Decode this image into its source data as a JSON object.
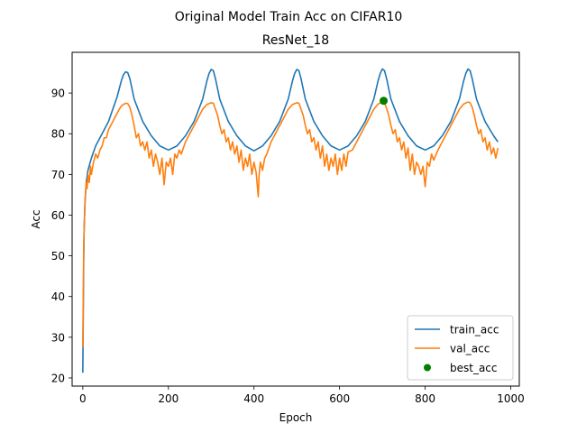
{
  "chart_data": {
    "type": "line",
    "suptitle": "Original Model Train Acc on CIFAR10",
    "title": "ResNet_18",
    "xlabel": "Epoch",
    "ylabel": "Acc",
    "xlim": [
      -25,
      1020
    ],
    "ylim": [
      18,
      100
    ],
    "xticks": [
      0,
      200,
      400,
      600,
      800,
      1000
    ],
    "yticks": [
      20,
      30,
      40,
      50,
      60,
      70,
      80,
      90
    ],
    "grid": false,
    "legend_position": "lower-right",
    "series": [
      {
        "name": "train_acc",
        "color": "#1f77b4",
        "points": [
          [
            0,
            21.3
          ],
          [
            1,
            35
          ],
          [
            2,
            48
          ],
          [
            3,
            56
          ],
          [
            5,
            63
          ],
          [
            8,
            68
          ],
          [
            12,
            71
          ],
          [
            20,
            74
          ],
          [
            30,
            77
          ],
          [
            40,
            79
          ],
          [
            50,
            81
          ],
          [
            60,
            83
          ],
          [
            70,
            86
          ],
          [
            80,
            89
          ],
          [
            90,
            93
          ],
          [
            95,
            94.5
          ],
          [
            100,
            95.2
          ],
          [
            105,
            95
          ],
          [
            110,
            93.5
          ],
          [
            120,
            88.5
          ],
          [
            140,
            83
          ],
          [
            160,
            79.5
          ],
          [
            180,
            77
          ],
          [
            200,
            76
          ],
          [
            220,
            77
          ],
          [
            240,
            79.5
          ],
          [
            260,
            83
          ],
          [
            280,
            88.5
          ],
          [
            290,
            93
          ],
          [
            295,
            94.8
          ],
          [
            300,
            95.8
          ],
          [
            305,
            95.5
          ],
          [
            310,
            93.5
          ],
          [
            320,
            88.5
          ],
          [
            340,
            83
          ],
          [
            360,
            79.5
          ],
          [
            380,
            77
          ],
          [
            400,
            75.8
          ],
          [
            420,
            77
          ],
          [
            440,
            79.5
          ],
          [
            460,
            83
          ],
          [
            480,
            88.5
          ],
          [
            490,
            93
          ],
          [
            495,
            94.8
          ],
          [
            500,
            95.8
          ],
          [
            505,
            95.5
          ],
          [
            510,
            93.5
          ],
          [
            520,
            88.5
          ],
          [
            540,
            83
          ],
          [
            560,
            79.5
          ],
          [
            580,
            77
          ],
          [
            600,
            76
          ],
          [
            620,
            77
          ],
          [
            640,
            79.5
          ],
          [
            660,
            83
          ],
          [
            680,
            88.5
          ],
          [
            690,
            93
          ],
          [
            695,
            94.8
          ],
          [
            700,
            95.9
          ],
          [
            705,
            95.5
          ],
          [
            710,
            93.5
          ],
          [
            720,
            88.5
          ],
          [
            740,
            83
          ],
          [
            760,
            79.5
          ],
          [
            780,
            77
          ],
          [
            800,
            76
          ],
          [
            820,
            77
          ],
          [
            840,
            79.5
          ],
          [
            860,
            83
          ],
          [
            880,
            88.5
          ],
          [
            890,
            93
          ],
          [
            895,
            94.8
          ],
          [
            900,
            95.9
          ],
          [
            905,
            95.5
          ],
          [
            910,
            93.5
          ],
          [
            920,
            88.5
          ],
          [
            940,
            83
          ],
          [
            960,
            79.5
          ],
          [
            970,
            78
          ]
        ]
      },
      {
        "name": "val_acc",
        "color": "#ff7f0e",
        "points": [
          [
            0,
            27.5
          ],
          [
            2,
            52
          ],
          [
            4,
            60
          ],
          [
            6,
            65
          ],
          [
            8,
            68
          ],
          [
            10,
            66.5
          ],
          [
            12,
            70
          ],
          [
            15,
            68
          ],
          [
            18,
            72
          ],
          [
            20,
            70
          ],
          [
            25,
            73
          ],
          [
            30,
            75
          ],
          [
            35,
            74
          ],
          [
            40,
            76
          ],
          [
            45,
            77
          ],
          [
            50,
            79
          ],
          [
            55,
            79
          ],
          [
            60,
            81
          ],
          [
            65,
            82
          ],
          [
            70,
            83
          ],
          [
            75,
            84
          ],
          [
            80,
            85
          ],
          [
            85,
            86
          ],
          [
            90,
            86.8
          ],
          [
            95,
            87.2
          ],
          [
            100,
            87.5
          ],
          [
            105,
            87.4
          ],
          [
            110,
            86.5
          ],
          [
            115,
            84.5
          ],
          [
            120,
            82
          ],
          [
            125,
            79
          ],
          [
            130,
            80
          ],
          [
            135,
            77
          ],
          [
            140,
            78
          ],
          [
            145,
            76
          ],
          [
            150,
            78
          ],
          [
            155,
            74
          ],
          [
            160,
            76
          ],
          [
            165,
            72
          ],
          [
            170,
            75
          ],
          [
            175,
            73
          ],
          [
            180,
            70
          ],
          [
            185,
            74
          ],
          [
            190,
            67.5
          ],
          [
            195,
            73
          ],
          [
            200,
            72
          ],
          [
            205,
            74
          ],
          [
            210,
            70
          ],
          [
            215,
            75
          ],
          [
            220,
            74
          ],
          [
            225,
            76
          ],
          [
            230,
            75
          ],
          [
            240,
            78
          ],
          [
            250,
            80
          ],
          [
            260,
            82
          ],
          [
            270,
            84
          ],
          [
            280,
            86
          ],
          [
            290,
            87.2
          ],
          [
            300,
            87.6
          ],
          [
            305,
            87.5
          ],
          [
            310,
            86
          ],
          [
            315,
            84.5
          ],
          [
            320,
            82
          ],
          [
            325,
            80
          ],
          [
            330,
            81
          ],
          [
            335,
            78
          ],
          [
            340,
            79
          ],
          [
            345,
            76
          ],
          [
            350,
            78
          ],
          [
            355,
            75
          ],
          [
            360,
            77
          ],
          [
            365,
            73
          ],
          [
            370,
            76
          ],
          [
            375,
            71
          ],
          [
            380,
            74
          ],
          [
            385,
            72
          ],
          [
            390,
            75
          ],
          [
            395,
            70
          ],
          [
            400,
            73
          ],
          [
            405,
            70.5
          ],
          [
            410,
            64.5
          ],
          [
            412,
            70
          ],
          [
            415,
            73
          ],
          [
            420,
            71
          ],
          [
            425,
            74
          ],
          [
            430,
            75
          ],
          [
            440,
            78
          ],
          [
            450,
            80
          ],
          [
            460,
            82
          ],
          [
            470,
            84
          ],
          [
            480,
            86
          ],
          [
            490,
            87.2
          ],
          [
            500,
            87.6
          ],
          [
            505,
            87.5
          ],
          [
            510,
            86
          ],
          [
            515,
            84.5
          ],
          [
            520,
            82
          ],
          [
            525,
            80
          ],
          [
            530,
            81
          ],
          [
            535,
            78
          ],
          [
            540,
            79
          ],
          [
            545,
            76
          ],
          [
            550,
            78
          ],
          [
            555,
            74
          ],
          [
            560,
            77
          ],
          [
            565,
            72
          ],
          [
            570,
            75
          ],
          [
            575,
            71
          ],
          [
            580,
            74
          ],
          [
            585,
            72
          ],
          [
            590,
            75
          ],
          [
            595,
            70
          ],
          [
            600,
            74
          ],
          [
            605,
            71
          ],
          [
            610,
            75
          ],
          [
            615,
            72
          ],
          [
            620,
            75.5
          ],
          [
            630,
            76
          ],
          [
            640,
            78
          ],
          [
            650,
            80
          ],
          [
            660,
            82
          ],
          [
            670,
            84
          ],
          [
            680,
            86
          ],
          [
            690,
            87.3
          ],
          [
            700,
            87.8
          ],
          [
            705,
            87.6
          ],
          [
            710,
            86.2
          ],
          [
            715,
            84.5
          ],
          [
            720,
            82
          ],
          [
            725,
            80
          ],
          [
            730,
            81
          ],
          [
            735,
            78
          ],
          [
            740,
            79
          ],
          [
            745,
            76
          ],
          [
            750,
            78
          ],
          [
            755,
            74
          ],
          [
            760,
            76.5
          ],
          [
            765,
            71
          ],
          [
            770,
            75
          ],
          [
            775,
            70
          ],
          [
            780,
            73
          ],
          [
            785,
            72
          ],
          [
            790,
            70
          ],
          [
            795,
            72
          ],
          [
            800,
            67
          ],
          [
            805,
            73
          ],
          [
            810,
            72
          ],
          [
            815,
            75
          ],
          [
            820,
            73.5
          ],
          [
            830,
            76
          ],
          [
            840,
            78
          ],
          [
            850,
            80
          ],
          [
            860,
            82
          ],
          [
            870,
            84
          ],
          [
            880,
            86
          ],
          [
            890,
            87.3
          ],
          [
            900,
            87.8
          ],
          [
            905,
            87.6
          ],
          [
            910,
            86.5
          ],
          [
            915,
            84.5
          ],
          [
            920,
            82
          ],
          [
            925,
            80
          ],
          [
            930,
            81
          ],
          [
            935,
            78
          ],
          [
            940,
            79
          ],
          [
            945,
            76
          ],
          [
            950,
            78
          ],
          [
            955,
            75
          ],
          [
            960,
            76.5
          ],
          [
            965,
            74
          ],
          [
            970,
            76.5
          ]
        ]
      }
    ],
    "markers": [
      {
        "name": "best_acc",
        "color": "#008000",
        "x": 703,
        "y": 88.1
      }
    ]
  }
}
